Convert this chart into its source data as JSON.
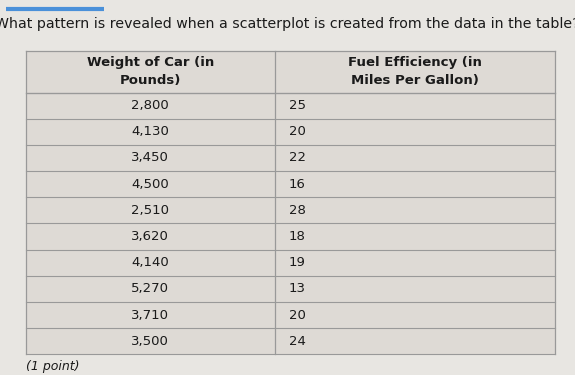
{
  "question": "What pattern is revealed when a scatterplot is created from the data in the table?",
  "col1_header_line1": "Weight of Car (in",
  "col1_header_line2": "Pounds)",
  "col2_header_line1": "Fuel Efficiency (in",
  "col2_header_line2": "Miles Per Gallon)",
  "weights_labels": [
    "2,800",
    "4,130",
    "3,450",
    "4,500",
    "2,510",
    "3,620",
    "4,140",
    "5,270",
    "3,710",
    "3,500"
  ],
  "mpg": [
    25,
    20,
    22,
    16,
    28,
    18,
    19,
    13,
    20,
    24
  ],
  "footnote": "(1 point)",
  "page_bg": "#e8e6e2",
  "table_cell_bg": "#dedad5",
  "header_bg": "#dedad5",
  "border_color": "#999999",
  "text_color": "#1a1a1a",
  "blue_line_color": "#4a90d9"
}
